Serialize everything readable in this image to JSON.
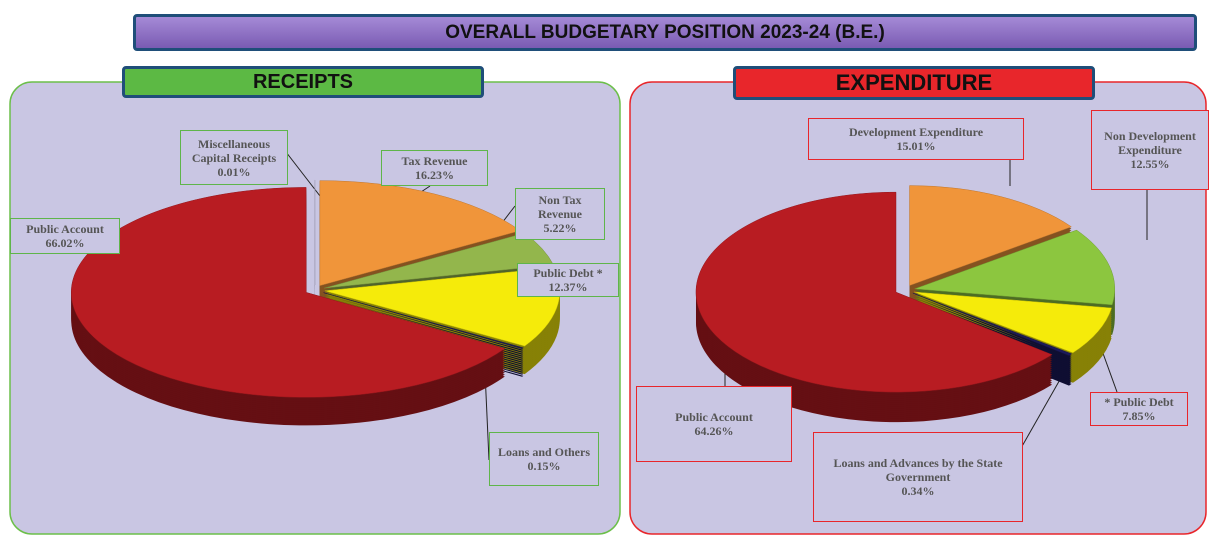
{
  "title": "OVERALL BUDGETARY POSITION 2023-24 (B.E.)",
  "chart_data": [
    {
      "type": "pie",
      "title": "RECEIPTS",
      "categories": [
        "Tax Revenue",
        "Non Tax Revenue",
        "Public Debt *",
        "Loans and Others",
        "Public Account",
        "Miscellaneous Capital Receipts"
      ],
      "values": [
        16.23,
        5.22,
        12.37,
        0.15,
        66.02,
        0.01
      ],
      "value_labels": [
        "16.23%",
        "5.22%",
        "12.37%",
        "0.15%",
        "66.02%",
        "0.01%"
      ],
      "colors": [
        "#f0953a",
        "#93b64c",
        "#f5eb0a",
        "#1c1a5a",
        "#b81c22",
        "#c9c6e3"
      ]
    },
    {
      "type": "pie",
      "title": "EXPENDITURE",
      "categories": [
        "Development Expenditure",
        "Non Development Expenditure",
        "* Public Debt",
        "Loans and Advances by the State Government",
        "Public Account"
      ],
      "values": [
        15.01,
        12.55,
        7.85,
        0.34,
        64.26
      ],
      "value_labels": [
        "15.01%",
        "12.55%",
        "7.85%",
        "0.34%",
        "64.26%"
      ],
      "colors": [
        "#f0953a",
        "#8cc63f",
        "#f5eb0a",
        "#1c1a5a",
        "#b81c22"
      ]
    }
  ]
}
